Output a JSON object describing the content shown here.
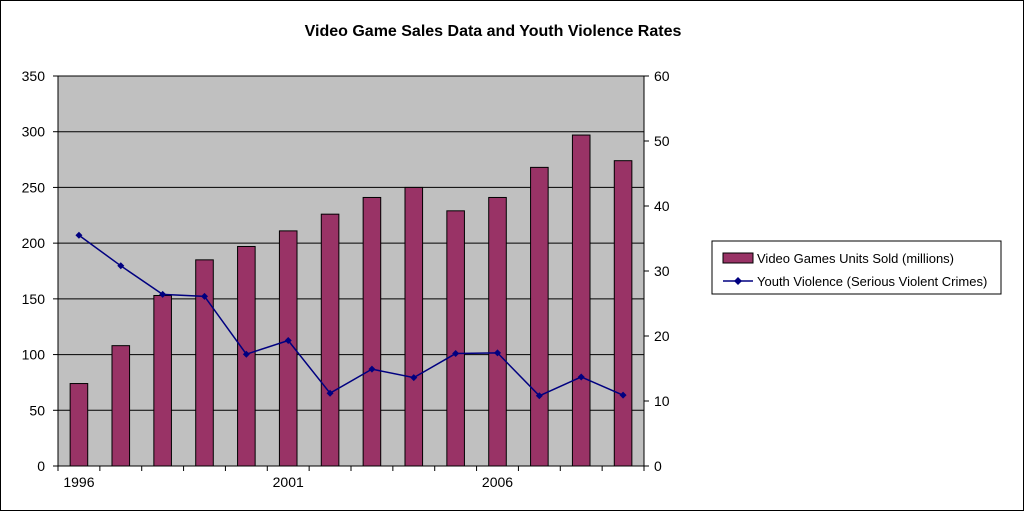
{
  "chart_data": {
    "type": "bar",
    "title": "Video Game Sales Data and Youth Violence Rates",
    "x": [
      1996,
      1997,
      1998,
      1999,
      2000,
      2001,
      2002,
      2003,
      2004,
      2005,
      2006,
      2007,
      2008,
      2009
    ],
    "x_tick_labels": [
      "1996",
      "2001",
      "2006"
    ],
    "series": [
      {
        "name": "Video Games Units Sold (millions)",
        "type": "bar",
        "axis": "left",
        "color": "#993366",
        "values": [
          74,
          108,
          153,
          185,
          197,
          211,
          226,
          241,
          250,
          229,
          241,
          268,
          297,
          274
        ]
      },
      {
        "name": "Youth Violence (Serious Violent Crimes)",
        "type": "line",
        "axis": "right",
        "marker": "diamond",
        "color": "#000080",
        "values": [
          35.5,
          30.8,
          26.4,
          26.1,
          17.2,
          19.3,
          11.2,
          14.9,
          13.6,
          17.3,
          17.4,
          10.8,
          13.7,
          10.9
        ]
      }
    ],
    "y_left": {
      "ylim": [
        0,
        350
      ],
      "ticks": [
        0,
        50,
        100,
        150,
        200,
        250,
        300,
        350
      ]
    },
    "y_right": {
      "ylim": [
        0,
        60
      ],
      "ticks": [
        0,
        10,
        20,
        30,
        40,
        50,
        60
      ]
    },
    "plot_background": "#c0c0c0",
    "grid": true,
    "legend_position": "right"
  }
}
